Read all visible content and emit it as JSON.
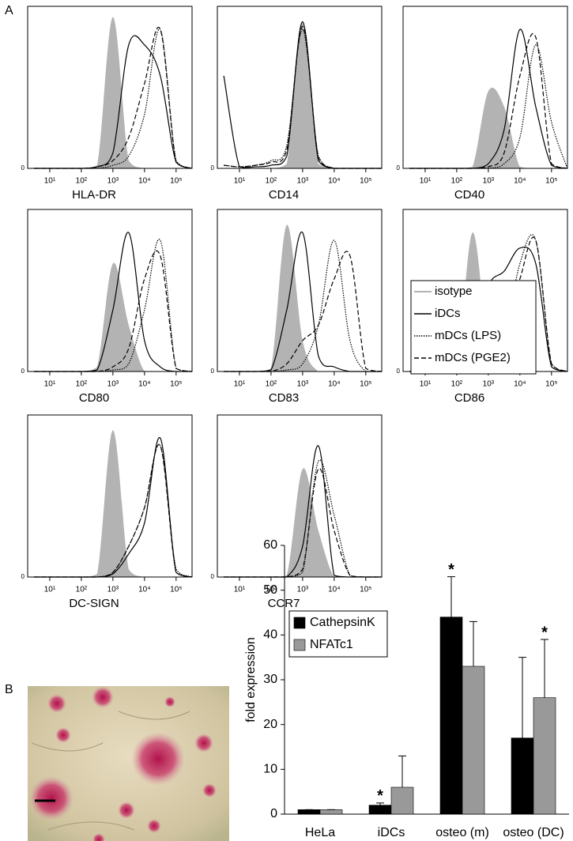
{
  "panel_labels": [
    "A",
    "B"
  ],
  "chart_data": [
    {
      "type": "flow-histograms",
      "xscale": "log",
      "x": [
        3.2,
        10,
        32,
        100,
        316,
        1000,
        3162,
        10000,
        31623,
        100000,
        316228
      ],
      "xlim": [
        2,
        320000
      ],
      "xticks": [
        {
          "value": 10,
          "label": "10¹"
        },
        {
          "value": 100,
          "label": "10²"
        },
        {
          "value": 1000,
          "label": "10³"
        },
        {
          "value": 10000,
          "label": "10⁴"
        },
        {
          "value": 100000,
          "label": "10⁵"
        }
      ],
      "ylim": [
        0,
        105
      ],
      "yticks": [
        0
      ],
      "series": [
        {
          "name": "isotype",
          "color": "#b3b3b3",
          "style": "filled"
        },
        {
          "name": "iDCs",
          "color": "#000000",
          "style": "solid"
        },
        {
          "name": "mDCs (LPS)",
          "color": "#000000",
          "style": "dotted"
        },
        {
          "name": "mDCs (PGE2)",
          "color": "#000000",
          "style": "dashed"
        }
      ],
      "panels": [
        {
          "xlabel": "HLA-DR",
          "values": [
            [
              0,
              0,
              0,
              0,
              2,
              98,
              5,
              0,
              0,
              0,
              0
            ],
            [
              0,
              0,
              0,
              0,
              1,
              10,
              80,
              80,
              60,
              4,
              0
            ],
            [
              0,
              0,
              0,
              0,
              0,
              2,
              8,
              35,
              90,
              5,
              0
            ],
            [
              0,
              0,
              0,
              0,
              1,
              5,
              20,
              55,
              90,
              4,
              0
            ]
          ]
        },
        {
          "xlabel": "CD14",
          "values": [
            [
              0,
              0,
              0,
              0,
              3,
              95,
              3,
              0,
              0,
              0,
              0
            ],
            [
              60,
              1,
              1,
              2,
              8,
              95,
              5,
              0,
              0,
              0,
              0
            ],
            [
              2,
              1,
              2,
              5,
              15,
              90,
              8,
              0,
              0,
              0,
              0
            ],
            [
              2,
              1,
              2,
              4,
              12,
              92,
              7,
              0,
              0,
              0,
              0
            ]
          ]
        },
        {
          "xlabel": "CD40",
          "values": [
            [
              0,
              0,
              0,
              0,
              1,
              50,
              40,
              1,
              0,
              0,
              0
            ],
            [
              0,
              0,
              0,
              0,
              0,
              3,
              25,
              90,
              40,
              2,
              0
            ],
            [
              0,
              0,
              0,
              0,
              0,
              0,
              3,
              20,
              80,
              30,
              0
            ],
            [
              0,
              0,
              0,
              0,
              0,
              1,
              10,
              60,
              85,
              3,
              0
            ]
          ]
        },
        {
          "xlabel": "CD80",
          "values": [
            [
              0,
              0,
              0,
              0,
              3,
              70,
              30,
              0,
              0,
              0,
              0
            ],
            [
              0,
              0,
              0,
              0,
              1,
              40,
              90,
              20,
              3,
              0,
              0
            ],
            [
              0,
              0,
              0,
              0,
              0,
              1,
              5,
              40,
              85,
              2,
              0
            ],
            [
              0,
              0,
              0,
              0,
              0,
              3,
              15,
              60,
              75,
              2,
              0
            ]
          ]
        },
        {
          "xlabel": "CD83",
          "values": [
            [
              0,
              0,
              0,
              2,
              95,
              20,
              0,
              0,
              0,
              0,
              0
            ],
            [
              0,
              0,
              0,
              1,
              40,
              90,
              10,
              3,
              0,
              0,
              0
            ],
            [
              0,
              0,
              0,
              0,
              1,
              5,
              30,
              85,
              20,
              0,
              0
            ],
            [
              0,
              0,
              0,
              0,
              5,
              20,
              30,
              60,
              75,
              2,
              0
            ]
          ]
        },
        {
          "xlabel": "CD86",
          "values": [
            [
              0,
              0,
              0,
              1,
              90,
              15,
              0,
              0,
              0,
              0,
              0
            ],
            [
              0,
              0,
              0,
              0,
              10,
              55,
              65,
              80,
              70,
              3,
              0
            ],
            [
              0,
              0,
              0,
              0,
              0,
              2,
              20,
              70,
              85,
              5,
              0
            ],
            [
              0,
              0,
              0,
              0,
              1,
              5,
              25,
              60,
              85,
              5,
              0
            ]
          ]
        },
        {
          "xlabel": "DC-SIGN",
          "values": [
            [
              0,
              0,
              0,
              0,
              2,
              95,
              5,
              0,
              0,
              0,
              0
            ],
            [
              0,
              0,
              0,
              0,
              0,
              2,
              15,
              35,
              90,
              3,
              0
            ],
            [
              0,
              0,
              0,
              0,
              0,
              3,
              20,
              45,
              85,
              5,
              0
            ],
            [
              0,
              0,
              0,
              0,
              0,
              3,
              20,
              45,
              85,
              3,
              0
            ]
          ]
        },
        {
          "xlabel": "CCR7",
          "values": [
            [
              0,
              0,
              0,
              0,
              1,
              70,
              30,
              0,
              0,
              0,
              0
            ],
            [
              0,
              0,
              0,
              0,
              0,
              20,
              85,
              1,
              0,
              0,
              0
            ],
            [
              0,
              0,
              0,
              0,
              0,
              3,
              75,
              40,
              1,
              0,
              0
            ],
            [
              0,
              0,
              0,
              0,
              0,
              5,
              70,
              30,
              1,
              0,
              0
            ]
          ]
        }
      ]
    },
    {
      "type": "bar",
      "ylabel": "fold expression",
      "categories": [
        "HeLa",
        "iDCs",
        "osteo (m)",
        "osteo (DC)"
      ],
      "ylim": [
        0,
        60
      ],
      "yticks": [
        0,
        10,
        20,
        30,
        40,
        50,
        60
      ],
      "series": [
        {
          "name": "CathepsinK",
          "color": "#000000",
          "values": [
            1,
            2,
            44,
            17
          ],
          "errors": [
            0,
            0.5,
            9,
            18
          ],
          "significance": [
            null,
            "*",
            "*",
            null
          ]
        },
        {
          "name": "NFATc1",
          "color": "#999999",
          "values": [
            1,
            6,
            33,
            26
          ],
          "errors": [
            0,
            7,
            10,
            13
          ],
          "significance": [
            null,
            null,
            null,
            "*"
          ]
        }
      ]
    }
  ]
}
